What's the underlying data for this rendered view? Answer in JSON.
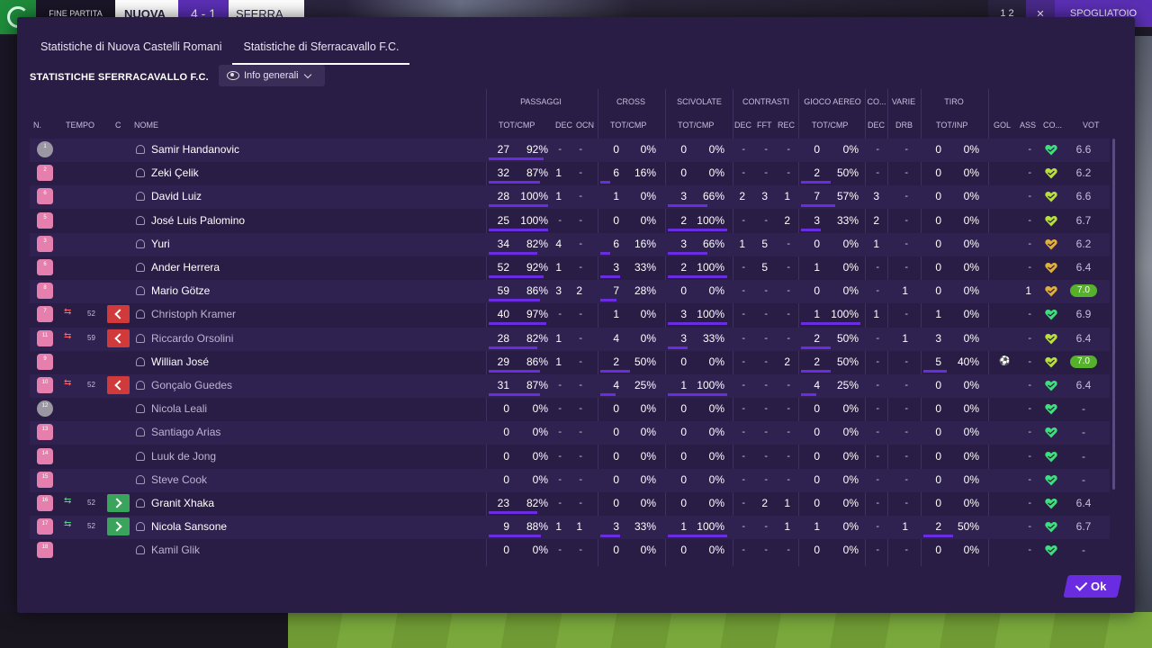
{
  "topbar": {
    "phase": "FINE PARTITA",
    "home": "NUOVA",
    "score": "4 - 1",
    "away": "SFERRA",
    "right_count": "1 2",
    "right_label": "SPOGLIATOIO"
  },
  "tabs": [
    {
      "label": "Statistiche di Nuova Castelli Romani"
    },
    {
      "label": "Statistiche di Sferracavallo F.C."
    }
  ],
  "section_title": "STATISTICHE SFERRACAVALLO F.C.",
  "view_dropdown": {
    "label": "Info generali"
  },
  "headers": {
    "groups": {
      "passaggi": "PASSAGGI",
      "cross": "CROSS",
      "scivolate": "SCIVOLATE",
      "contrasti": "CONTRASTI",
      "gioco_aereo": "GIOCO AEREO",
      "co": "CO...",
      "varie": "VARIE",
      "tiro": "TIRO"
    },
    "cols": {
      "n": "N.",
      "tempo": "TEMPO",
      "c": "C",
      "nome": "NOME",
      "pass_totcmp": "TOT/CMP",
      "pass_dec": "DEC",
      "pass_ocn": "OCN",
      "cross_totcmp": "TOT/CMP",
      "sciv_totcmp": "TOT/CMP",
      "con_dec": "DEC",
      "con_fft": "FFT",
      "con_rec": "REC",
      "aereo_totcmp": "TOT/CMP",
      "co_dec": "DEC",
      "varie_drb": "DRB",
      "tiro_totinp": "TOT/INP",
      "gol": "GOL",
      "ass": "ASS",
      "cond": "CO...",
      "vot": "VOT"
    }
  },
  "dash": "-",
  "players": [
    {
      "n": "1",
      "gk": true,
      "name": "Samir Handanovic",
      "dim": false,
      "sub": "",
      "min": "",
      "pass": "27",
      "passpct": "92%",
      "passfill": 0.92,
      "pdec": "-",
      "pocn": "-",
      "cross": "0",
      "crosspct": "0%",
      "crossfill": 0,
      "sciv": "0",
      "scivpct": "0%",
      "scivfill": 0,
      "cdec": "-",
      "cfft": "-",
      "crec": "-",
      "aer": "0",
      "aerpct": "0%",
      "aerfill": 0,
      "codec": "-",
      "drb": "-",
      "tiro": "0",
      "tiropct": "0%",
      "tirofill": 0,
      "gol": "",
      "ass": "-",
      "heart": "#3de07a",
      "vot": "6.6",
      "best": false
    },
    {
      "n": "2",
      "gk": false,
      "name": "Zeki Çelik",
      "dim": false,
      "sub": "",
      "min": "",
      "pass": "32",
      "passpct": "87%",
      "passfill": 0.87,
      "pdec": "1",
      "pocn": "-",
      "cross": "6",
      "crosspct": "16%",
      "crossfill": 0.16,
      "sciv": "0",
      "scivpct": "0%",
      "scivfill": 0,
      "cdec": "-",
      "cfft": "-",
      "crec": "-",
      "aer": "2",
      "aerpct": "50%",
      "aerfill": 0.5,
      "codec": "-",
      "drb": "-",
      "tiro": "0",
      "tiropct": "0%",
      "tirofill": 0,
      "gol": "",
      "ass": "-",
      "heart": "#b8e03a",
      "vot": "6.2",
      "best": false
    },
    {
      "n": "6",
      "gk": false,
      "name": "David Luiz",
      "dim": false,
      "sub": "",
      "min": "",
      "pass": "28",
      "passpct": "100%",
      "passfill": 1,
      "pdec": "1",
      "pocn": "-",
      "cross": "1",
      "crosspct": "0%",
      "crossfill": 0,
      "sciv": "3",
      "scivpct": "66%",
      "scivfill": 0.66,
      "cdec": "2",
      "cfft": "3",
      "crec": "1",
      "aer": "7",
      "aerpct": "57%",
      "aerfill": 0.57,
      "codec": "3",
      "drb": "-",
      "tiro": "0",
      "tiropct": "0%",
      "tirofill": 0,
      "gol": "",
      "ass": "-",
      "heart": "#b8e03a",
      "vot": "6.6",
      "best": false
    },
    {
      "n": "5",
      "gk": false,
      "name": "José Luis Palomino",
      "dim": false,
      "sub": "",
      "min": "",
      "pass": "25",
      "passpct": "100%",
      "passfill": 1,
      "pdec": "-",
      "pocn": "-",
      "cross": "0",
      "crosspct": "0%",
      "crossfill": 0,
      "sciv": "2",
      "scivpct": "100%",
      "scivfill": 1,
      "cdec": "-",
      "cfft": "-",
      "crec": "2",
      "aer": "3",
      "aerpct": "33%",
      "aerfill": 0.33,
      "codec": "2",
      "drb": "-",
      "tiro": "0",
      "tiropct": "0%",
      "tirofill": 0,
      "gol": "",
      "ass": "-",
      "heart": "#b8e03a",
      "vot": "6.7",
      "best": false
    },
    {
      "n": "3",
      "gk": false,
      "name": "Yuri",
      "dim": false,
      "sub": "",
      "min": "",
      "pass": "34",
      "passpct": "82%",
      "passfill": 0.82,
      "pdec": "4",
      "pocn": "-",
      "cross": "6",
      "crosspct": "16%",
      "crossfill": 0.16,
      "sciv": "3",
      "scivpct": "66%",
      "scivfill": 0.66,
      "cdec": "1",
      "cfft": "5",
      "crec": "-",
      "aer": "0",
      "aerpct": "0%",
      "aerfill": 0,
      "codec": "1",
      "drb": "-",
      "tiro": "0",
      "tiropct": "0%",
      "tirofill": 0,
      "gol": "",
      "ass": "-",
      "heart": "#e0b03a",
      "vot": "6.2",
      "best": false
    },
    {
      "n": "6",
      "gk": false,
      "name": "Ander Herrera",
      "dim": false,
      "sub": "",
      "min": "",
      "pass": "52",
      "passpct": "92%",
      "passfill": 0.92,
      "pdec": "1",
      "pocn": "-",
      "cross": "3",
      "crosspct": "33%",
      "crossfill": 0.33,
      "sciv": "2",
      "scivpct": "100%",
      "scivfill": 1,
      "cdec": "-",
      "cfft": "5",
      "crec": "-",
      "aer": "1",
      "aerpct": "0%",
      "aerfill": 0,
      "codec": "-",
      "drb": "-",
      "tiro": "0",
      "tiropct": "0%",
      "tirofill": 0,
      "gol": "",
      "ass": "-",
      "heart": "#e0b03a",
      "vot": "6.4",
      "best": false
    },
    {
      "n": "8",
      "gk": false,
      "name": "Mario Götze",
      "dim": false,
      "sub": "",
      "min": "",
      "pass": "59",
      "passpct": "86%",
      "passfill": 0.86,
      "pdec": "3",
      "pocn": "2",
      "cross": "7",
      "crosspct": "28%",
      "crossfill": 0.28,
      "sciv": "0",
      "scivpct": "0%",
      "scivfill": 0,
      "cdec": "-",
      "cfft": "-",
      "crec": "-",
      "aer": "0",
      "aerpct": "0%",
      "aerfill": 0,
      "codec": "-",
      "drb": "1",
      "tiro": "0",
      "tiropct": "0%",
      "tirofill": 0,
      "gol": "",
      "ass": "1",
      "heart": "#e0b03a",
      "vot": "7.0",
      "best": true
    },
    {
      "n": "7",
      "gk": false,
      "name": "Christoph Kramer",
      "dim": true,
      "sub": "off",
      "min": "52",
      "pass": "40",
      "passpct": "97%",
      "passfill": 0.97,
      "pdec": "-",
      "pocn": "-",
      "cross": "1",
      "crosspct": "0%",
      "crossfill": 0,
      "sciv": "3",
      "scivpct": "100%",
      "scivfill": 1,
      "cdec": "-",
      "cfft": "-",
      "crec": "-",
      "aer": "1",
      "aerpct": "100%",
      "aerfill": 1,
      "codec": "1",
      "drb": "-",
      "tiro": "1",
      "tiropct": "0%",
      "tirofill": 0,
      "gol": "",
      "ass": "-",
      "heart": "#3de07a",
      "vot": "6.9",
      "best": false
    },
    {
      "n": "11",
      "gk": false,
      "name": "Riccardo Orsolini",
      "dim": true,
      "sub": "off",
      "min": "59",
      "pass": "28",
      "passpct": "82%",
      "passfill": 0.82,
      "pdec": "1",
      "pocn": "-",
      "cross": "4",
      "crosspct": "0%",
      "crossfill": 0,
      "sciv": "3",
      "scivpct": "33%",
      "scivfill": 0.33,
      "cdec": "-",
      "cfft": "-",
      "crec": "-",
      "aer": "2",
      "aerpct": "50%",
      "aerfill": 0.5,
      "codec": "-",
      "drb": "1",
      "tiro": "3",
      "tiropct": "0%",
      "tirofill": 0,
      "gol": "",
      "ass": "-",
      "heart": "#b8e03a",
      "vot": "6.4",
      "best": false
    },
    {
      "n": "9",
      "gk": false,
      "name": "Willian José",
      "dim": false,
      "sub": "",
      "min": "",
      "pass": "29",
      "passpct": "86%",
      "passfill": 0.86,
      "pdec": "1",
      "pocn": "-",
      "cross": "2",
      "crosspct": "50%",
      "crossfill": 0.5,
      "sciv": "0",
      "scivpct": "0%",
      "scivfill": 0,
      "cdec": "-",
      "cfft": "-",
      "crec": "2",
      "aer": "2",
      "aerpct": "50%",
      "aerfill": 0.5,
      "codec": "-",
      "drb": "-",
      "tiro": "5",
      "tiropct": "40%",
      "tirofill": 0.4,
      "gol": "ball",
      "ass": "-",
      "heart": "#b8e03a",
      "vot": "7.0",
      "best": true
    },
    {
      "n": "10",
      "gk": false,
      "name": "Gonçalo Guedes",
      "dim": true,
      "sub": "off",
      "min": "52",
      "pass": "31",
      "passpct": "87%",
      "passfill": 0.87,
      "pdec": "-",
      "pocn": "-",
      "cross": "4",
      "crosspct": "25%",
      "crossfill": 0.25,
      "sciv": "1",
      "scivpct": "100%",
      "scivfill": 1,
      "cdec": "-",
      "cfft": "-",
      "crec": "-",
      "aer": "4",
      "aerpct": "25%",
      "aerfill": 0.25,
      "codec": "-",
      "drb": "-",
      "tiro": "0",
      "tiropct": "0%",
      "tirofill": 0,
      "gol": "",
      "ass": "-",
      "heart": "#3de07a",
      "vot": "6.4",
      "best": false
    },
    {
      "n": "12",
      "gk": true,
      "name": "Nicola Leali",
      "dim": true,
      "sub": "",
      "min": "",
      "pass": "0",
      "passpct": "0%",
      "passfill": 0,
      "pdec": "-",
      "pocn": "-",
      "cross": "0",
      "crosspct": "0%",
      "crossfill": 0,
      "sciv": "0",
      "scivpct": "0%",
      "scivfill": 0,
      "cdec": "-",
      "cfft": "-",
      "crec": "-",
      "aer": "0",
      "aerpct": "0%",
      "aerfill": 0,
      "codec": "-",
      "drb": "-",
      "tiro": "0",
      "tiropct": "0%",
      "tirofill": 0,
      "gol": "",
      "ass": "-",
      "heart": "#3de07a",
      "vot": "-",
      "best": false
    },
    {
      "n": "13",
      "gk": false,
      "name": "Santiago Arias",
      "dim": true,
      "sub": "",
      "min": "",
      "pass": "0",
      "passpct": "0%",
      "passfill": 0,
      "pdec": "-",
      "pocn": "-",
      "cross": "0",
      "crosspct": "0%",
      "crossfill": 0,
      "sciv": "0",
      "scivpct": "0%",
      "scivfill": 0,
      "cdec": "-",
      "cfft": "-",
      "crec": "-",
      "aer": "0",
      "aerpct": "0%",
      "aerfill": 0,
      "codec": "-",
      "drb": "-",
      "tiro": "0",
      "tiropct": "0%",
      "tirofill": 0,
      "gol": "",
      "ass": "-",
      "heart": "#3de07a",
      "vot": "-",
      "best": false
    },
    {
      "n": "14",
      "gk": false,
      "name": "Luuk de Jong",
      "dim": true,
      "sub": "",
      "min": "",
      "pass": "0",
      "passpct": "0%",
      "passfill": 0,
      "pdec": "-",
      "pocn": "-",
      "cross": "0",
      "crosspct": "0%",
      "crossfill": 0,
      "sciv": "0",
      "scivpct": "0%",
      "scivfill": 0,
      "cdec": "-",
      "cfft": "-",
      "crec": "-",
      "aer": "0",
      "aerpct": "0%",
      "aerfill": 0,
      "codec": "-",
      "drb": "-",
      "tiro": "0",
      "tiropct": "0%",
      "tirofill": 0,
      "gol": "",
      "ass": "-",
      "heart": "#3de07a",
      "vot": "-",
      "best": false
    },
    {
      "n": "15",
      "gk": false,
      "name": "Steve Cook",
      "dim": true,
      "sub": "",
      "min": "",
      "pass": "0",
      "passpct": "0%",
      "passfill": 0,
      "pdec": "-",
      "pocn": "-",
      "cross": "0",
      "crosspct": "0%",
      "crossfill": 0,
      "sciv": "0",
      "scivpct": "0%",
      "scivfill": 0,
      "cdec": "-",
      "cfft": "-",
      "crec": "-",
      "aer": "0",
      "aerpct": "0%",
      "aerfill": 0,
      "codec": "-",
      "drb": "-",
      "tiro": "0",
      "tiropct": "0%",
      "tirofill": 0,
      "gol": "",
      "ass": "-",
      "heart": "#3de07a",
      "vot": "-",
      "best": false
    },
    {
      "n": "16",
      "gk": false,
      "name": "Granit Xhaka",
      "dim": false,
      "sub": "on",
      "min": "52",
      "pass": "23",
      "passpct": "82%",
      "passfill": 0.82,
      "pdec": "-",
      "pocn": "-",
      "cross": "0",
      "crosspct": "0%",
      "crossfill": 0,
      "sciv": "0",
      "scivpct": "0%",
      "scivfill": 0,
      "cdec": "-",
      "cfft": "2",
      "crec": "1",
      "aer": "0",
      "aerpct": "0%",
      "aerfill": 0,
      "codec": "-",
      "drb": "-",
      "tiro": "0",
      "tiropct": "0%",
      "tirofill": 0,
      "gol": "",
      "ass": "-",
      "heart": "#3de07a",
      "vot": "6.4",
      "best": false
    },
    {
      "n": "17",
      "gk": false,
      "name": "Nicola Sansone",
      "dim": false,
      "sub": "on",
      "min": "52",
      "pass": "9",
      "passpct": "88%",
      "passfill": 0.88,
      "pdec": "1",
      "pocn": "1",
      "cross": "3",
      "crosspct": "33%",
      "crossfill": 0.33,
      "sciv": "1",
      "scivpct": "100%",
      "scivfill": 1,
      "cdec": "-",
      "cfft": "-",
      "crec": "1",
      "aer": "1",
      "aerpct": "0%",
      "aerfill": 0,
      "codec": "-",
      "drb": "1",
      "tiro": "2",
      "tiropct": "50%",
      "tirofill": 0.5,
      "gol": "",
      "ass": "-",
      "heart": "#3de07a",
      "vot": "6.7",
      "best": false
    },
    {
      "n": "18",
      "gk": false,
      "name": "Kamil Glik",
      "dim": true,
      "sub": "",
      "min": "",
      "pass": "0",
      "passpct": "0%",
      "passfill": 0,
      "pdec": "-",
      "pocn": "-",
      "cross": "0",
      "crosspct": "0%",
      "crossfill": 0,
      "sciv": "0",
      "scivpct": "0%",
      "scivfill": 0,
      "cdec": "-",
      "cfft": "-",
      "crec": "-",
      "aer": "0",
      "aerpct": "0%",
      "aerfill": 0,
      "codec": "-",
      "drb": "-",
      "tiro": "0",
      "tiropct": "0%",
      "tirofill": 0,
      "gol": "",
      "ass": "-",
      "heart": "#3de07a",
      "vot": "-",
      "best": false
    }
  ],
  "ok_button": {
    "label": "Ok"
  },
  "colors": {
    "accent": "#6a2ce0",
    "panel": "#2a1d45",
    "sub_off": "#d13a3a",
    "sub_on": "#3aa35c",
    "shirt": "#e47fae"
  }
}
